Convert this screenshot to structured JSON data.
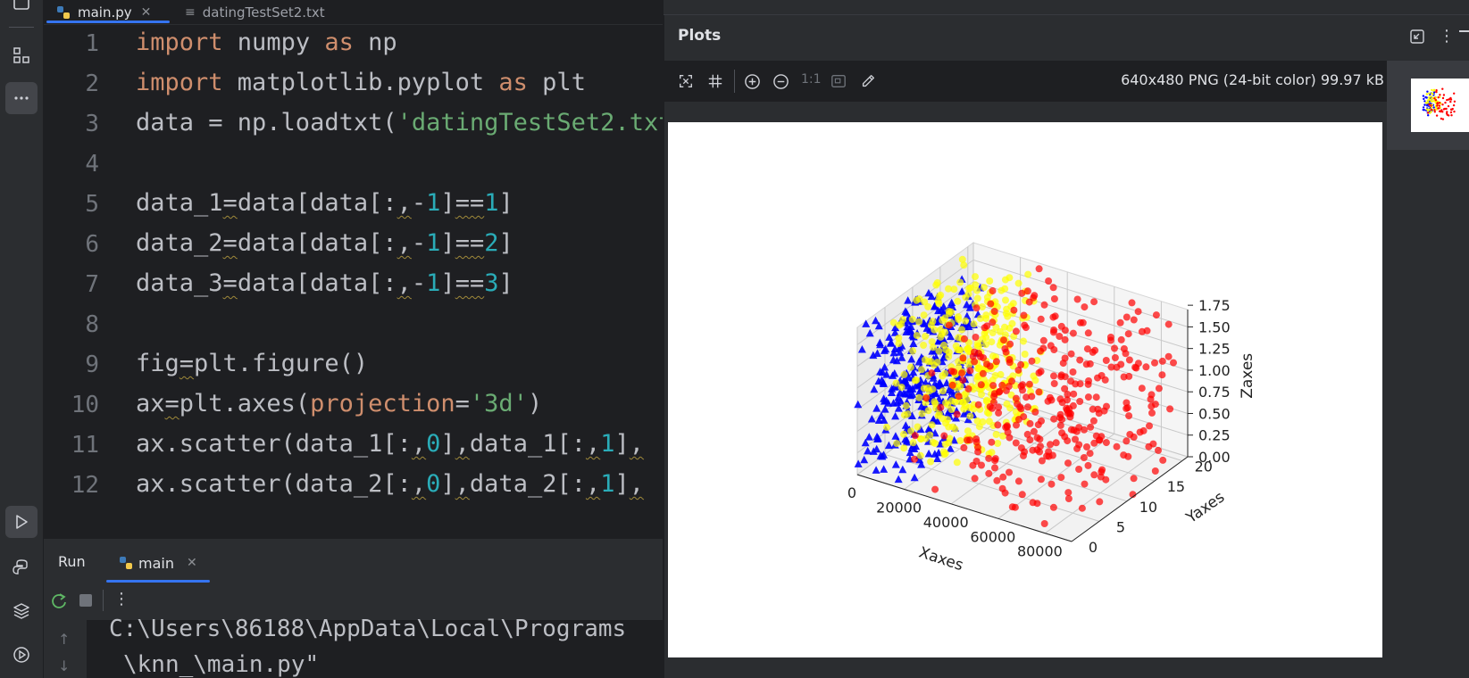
{
  "editor": {
    "tabs": [
      {
        "label": "main.py",
        "active": true
      },
      {
        "label": "datingTestSet2.txt",
        "active": false
      }
    ],
    "line_numbers": [
      "1",
      "2",
      "3",
      "4",
      "5",
      "6",
      "7",
      "8",
      "9",
      "10",
      "11",
      "12"
    ]
  },
  "run_panel": {
    "title": "Run",
    "tab_label": "main",
    "output_lines": [
      "C:\\Users\\86188\\AppData\\Local\\Programs",
      "\\knn_\\main.py\""
    ]
  },
  "plots_panel": {
    "title": "Plots",
    "image_info": "640x480 PNG (24-bit color) 99.97 kB",
    "zoom_actual_label": "1:1"
  },
  "chart_data": {
    "type": "scatter",
    "projection": "3d",
    "xlabel": "Xaxes",
    "ylabel": "Yaxes",
    "zlabel": "Zaxes",
    "x_ticks": [
      "0",
      "20000",
      "40000",
      "60000",
      "80000"
    ],
    "y_ticks": [
      "0",
      "5",
      "10",
      "15",
      "20"
    ],
    "z_ticks": [
      "0.00",
      "0.25",
      "0.50",
      "0.75",
      "1.00",
      "1.25",
      "1.50",
      "1.75"
    ],
    "xlim": [
      0,
      91273
    ],
    "ylim": [
      0,
      21
    ],
    "zlim": [
      0,
      1.7
    ],
    "grid": true,
    "series": [
      {
        "marker": "triangle",
        "color": "#0000ff",
        "x_range": [
          0,
          20000
        ],
        "y_range": [
          0,
          15
        ],
        "z_range": [
          0.0,
          1.7
        ],
        "n_points": 342
      },
      {
        "marker": "circle",
        "color": "#ffff00",
        "x_range": [
          0,
          35000
        ],
        "y_range": [
          5,
          20
        ],
        "z_range": [
          0.0,
          1.7
        ],
        "n_points": 331
      },
      {
        "marker": "circle",
        "color": "#ff0000",
        "x_range": [
          20000,
          91273
        ],
        "y_range": [
          0,
          21
        ],
        "z_range": [
          0.0,
          1.7
        ],
        "n_points": 327
      }
    ]
  }
}
